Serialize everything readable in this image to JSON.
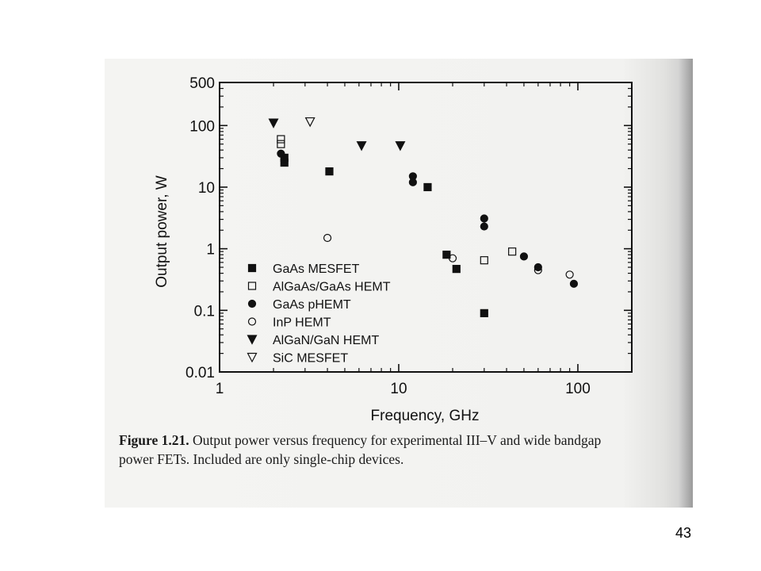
{
  "chart_data": {
    "type": "scatter",
    "title": "",
    "xlabel": "Frequency, GHz",
    "ylabel": "Output power, W",
    "x_scale": "log",
    "y_scale": "log",
    "xlim": [
      1,
      200
    ],
    "ylim": [
      0.01,
      500
    ],
    "x_ticks": [
      1,
      10,
      100
    ],
    "x_tick_labels": [
      "1",
      "10",
      "100"
    ],
    "y_ticks": [
      0.01,
      0.1,
      1,
      10,
      100,
      500
    ],
    "y_tick_labels": [
      "0.01",
      "0.1",
      "1",
      "10",
      "100",
      "500"
    ],
    "grid": false,
    "legend_position": "bottom-left",
    "series": [
      {
        "name": "GaAs MESFET",
        "marker": "square-filled",
        "x": [
          2.3,
          2.3,
          4.1,
          14.5,
          18.5,
          21,
          30
        ],
        "y": [
          25,
          30,
          18,
          10,
          0.8,
          0.47,
          0.09
        ]
      },
      {
        "name": "AlGaAs/GaAs HEMT",
        "marker": "square-open",
        "x": [
          2.2,
          2.2,
          30,
          43
        ],
        "y": [
          60,
          50,
          0.65,
          0.9
        ]
      },
      {
        "name": "GaAs pHEMT",
        "marker": "circle-filled",
        "x": [
          2.2,
          12,
          12,
          30,
          30,
          50,
          60,
          95
        ],
        "y": [
          35,
          15,
          12,
          3.1,
          2.3,
          0.75,
          0.5,
          0.27
        ]
      },
      {
        "name": "InP HEMT",
        "marker": "circle-open",
        "x": [
          4,
          20,
          60,
          90
        ],
        "y": [
          1.5,
          0.7,
          0.45,
          0.38
        ]
      },
      {
        "name": "AlGaN/GaN HEMT",
        "marker": "triangle-down-filled",
        "x": [
          2,
          6.2,
          10.2
        ],
        "y": [
          110,
          47,
          47
        ]
      },
      {
        "name": "SiC MESFET",
        "marker": "triangle-down-open",
        "x": [
          3.2
        ],
        "y": [
          115
        ]
      }
    ]
  },
  "caption": {
    "label": "Figure 1.21.",
    "line1": " Output power versus frequency for experimental III–V and wide bandgap",
    "line2": "power FETs. Included are only single-chip devices."
  },
  "page_number": "43",
  "colors": {
    "ink": "#111111",
    "scan_background": "#f3f3f1"
  }
}
